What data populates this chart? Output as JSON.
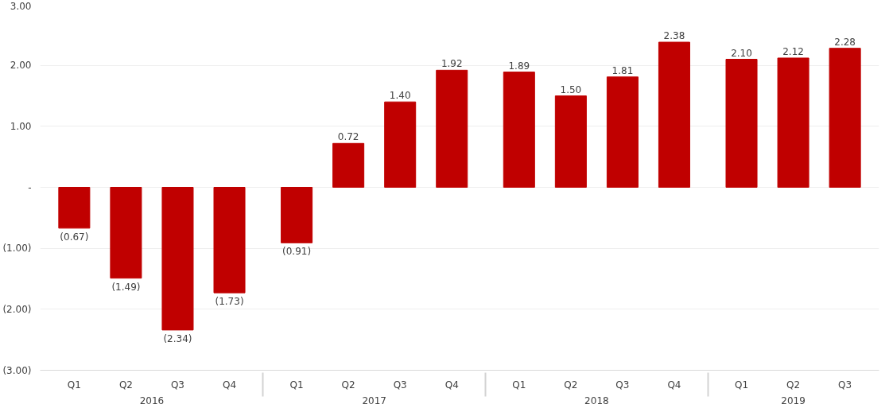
{
  "chart_data": {
    "type": "bar",
    "categories": [
      "Q1",
      "Q2",
      "Q3",
      "Q4",
      "Q1",
      "Q2",
      "Q3",
      "Q4",
      "Q1",
      "Q2",
      "Q3",
      "Q4",
      "Q1",
      "Q2",
      "Q3"
    ],
    "annotations": [
      "2016",
      "2017",
      "2018",
      "2019"
    ],
    "series": [
      {
        "color": "#c00000",
        "values": [
          -0.67,
          -1.49,
          -2.34,
          -1.73,
          -0.91,
          0.72,
          1.4,
          1.92,
          1.89,
          1.5,
          1.81,
          2.38,
          2.1,
          2.12,
          2.28
        ],
        "value_labels": [
          "(0.67)",
          "(1.49)",
          "(2.34)",
          "(1.73)",
          "(0.91)",
          "0.72",
          "1.40",
          "1.92",
          "1.89",
          "1.50",
          "1.81",
          "2.38",
          "2.10",
          "2.12",
          "2.28"
        ]
      }
    ],
    "ylim": [
      -3,
      3
    ],
    "yticks": [
      {
        "value": -3,
        "label": "(3.00)"
      },
      {
        "value": -2,
        "label": "(2.00)"
      },
      {
        "value": -1,
        "label": "(1.00)"
      },
      {
        "value": 0,
        "label": "-"
      },
      {
        "value": 1,
        "label": "1.00"
      },
      {
        "value": 2,
        "label": "2.00"
      },
      {
        "value": 3,
        "label": "3.00"
      }
    ],
    "grid": "y"
  }
}
